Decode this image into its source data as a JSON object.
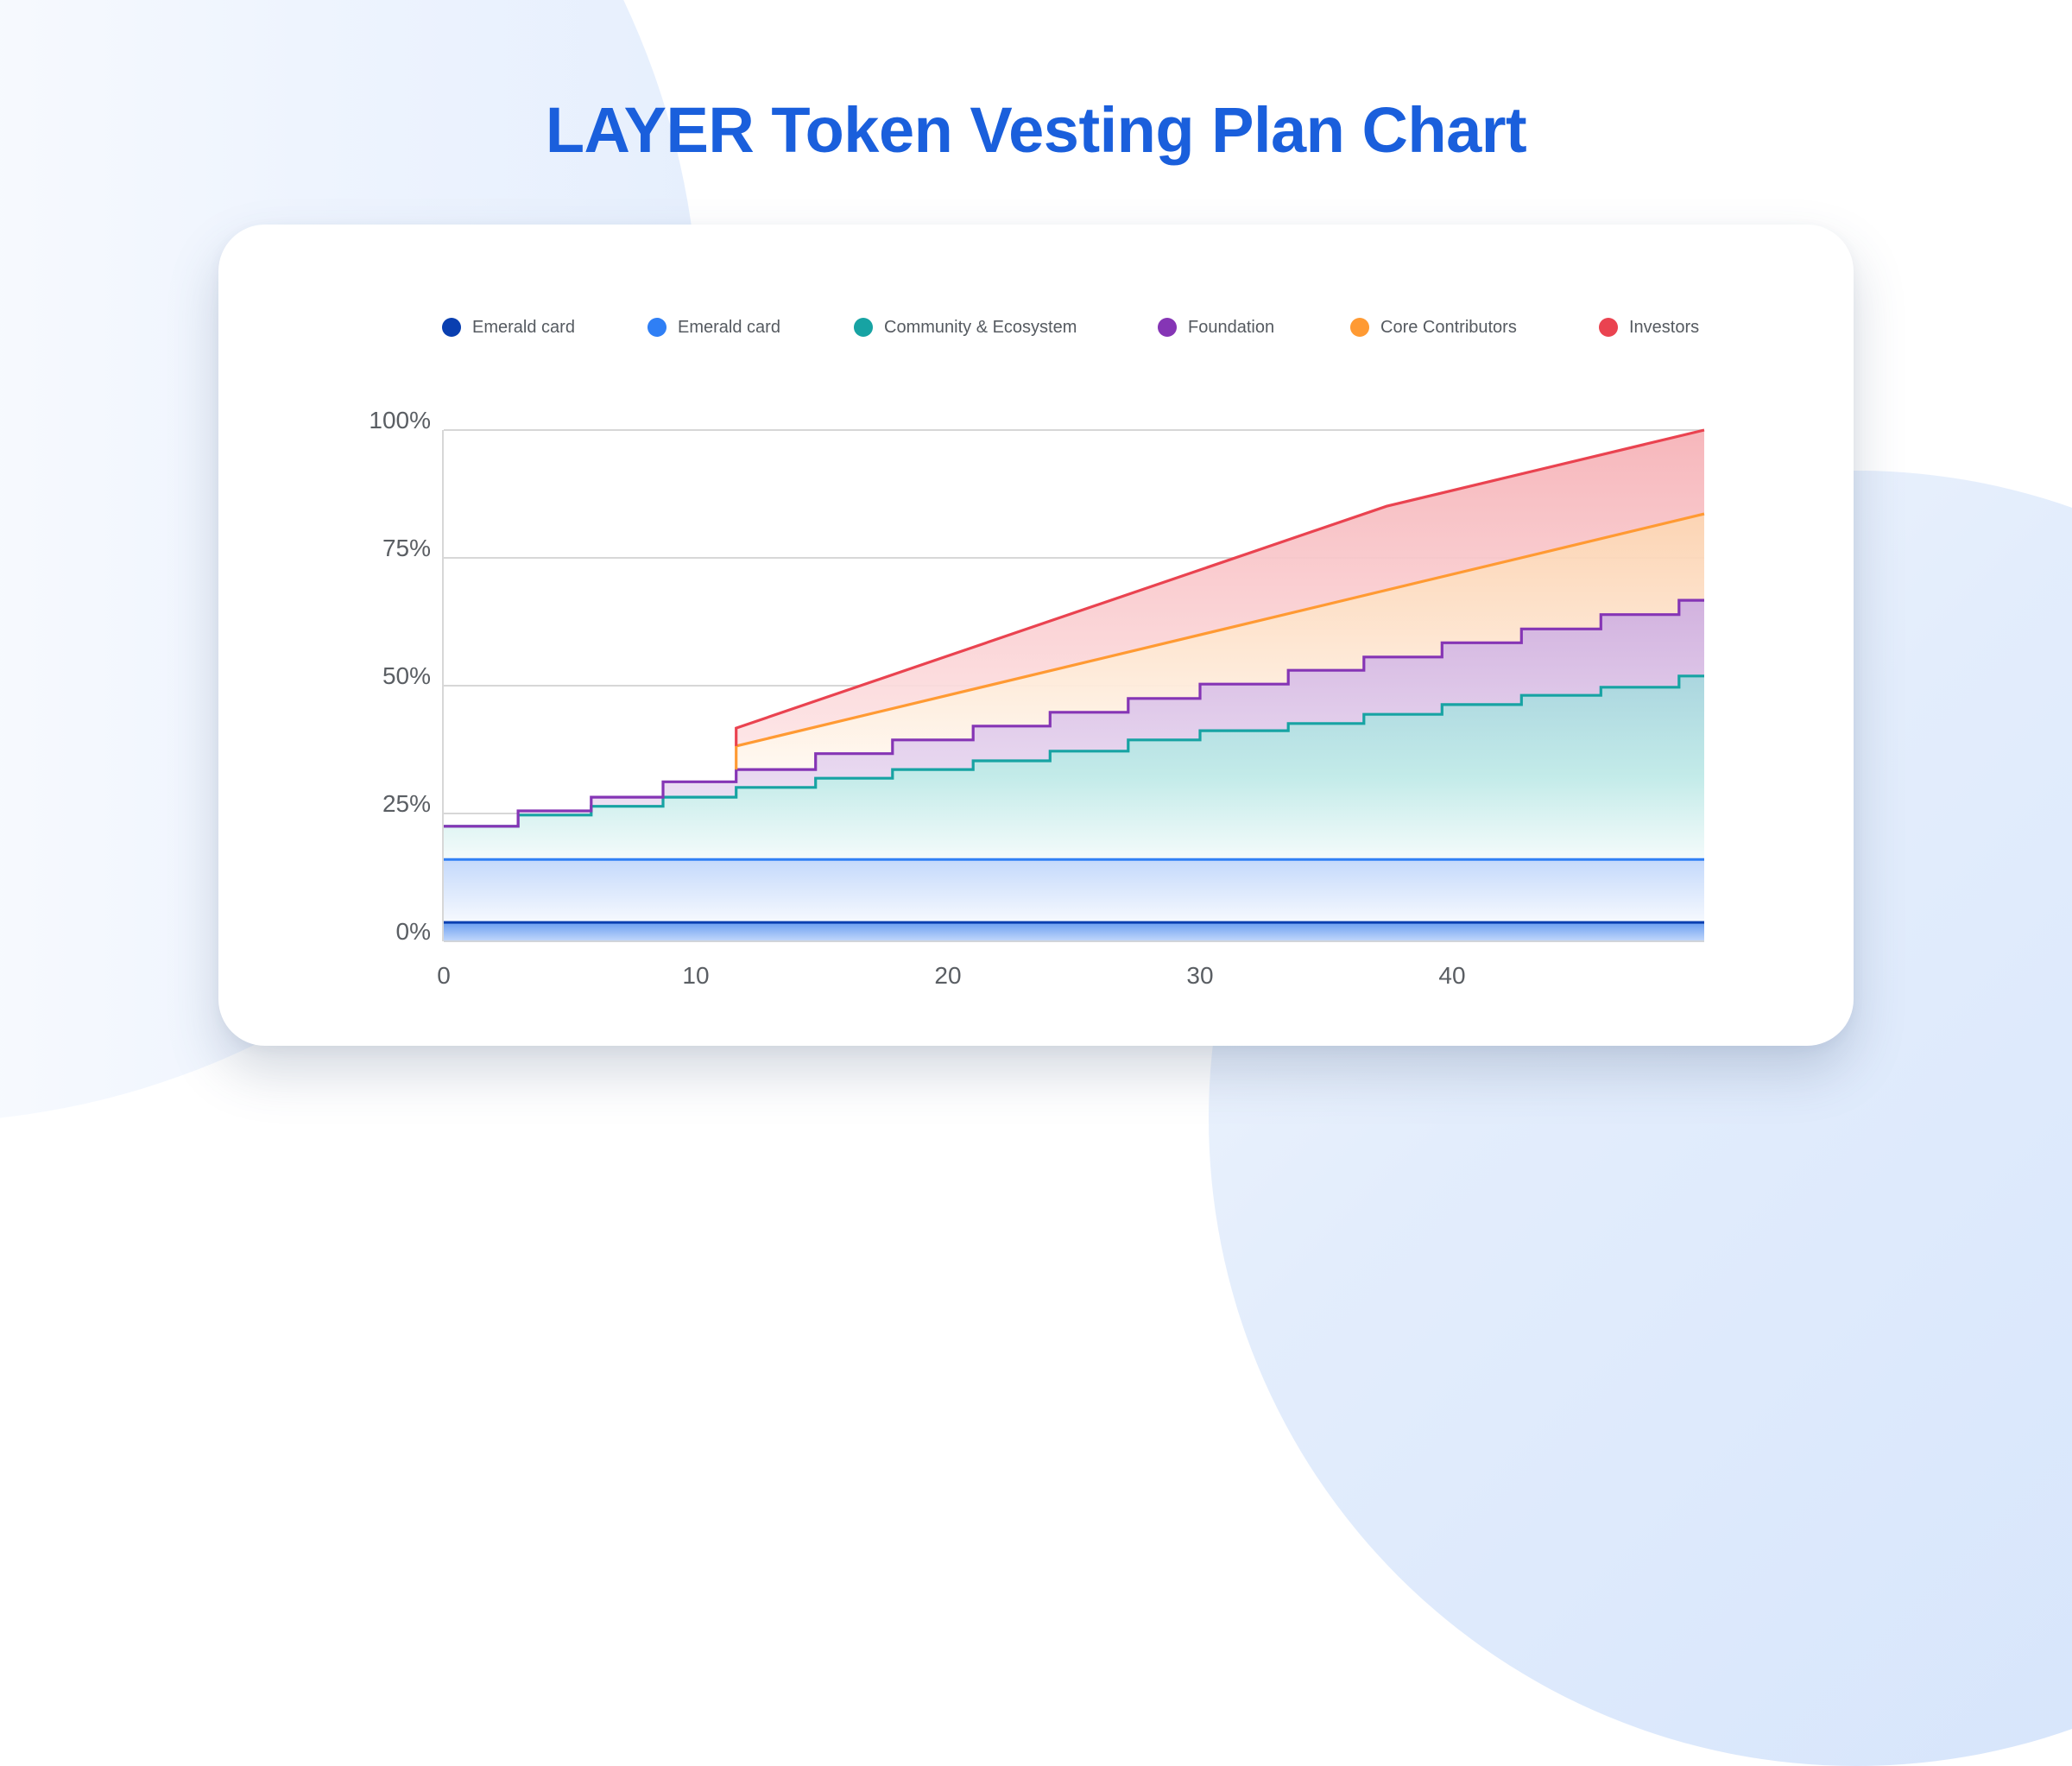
{
  "title": "LAYER Token Vesting Plan Chart",
  "legend": [
    {
      "label": "Emerald card",
      "color": "#0a3fb0"
    },
    {
      "label": "Emerald card",
      "color": "#2f7ff5"
    },
    {
      "label": "Community & Ecosystem",
      "color": "#17a3a3"
    },
    {
      "label": "Foundation",
      "color": "#8535b5"
    },
    {
      "label": "Core Contributors",
      "color": "#ff9a33"
    },
    {
      "label": "Investors",
      "color": "#ea4350"
    }
  ],
  "chart_data": {
    "type": "area",
    "title": "LAYER Token Vesting Plan Chart",
    "xlabel": "",
    "ylabel": "",
    "xlim": [
      0,
      50
    ],
    "ylim": [
      0,
      100
    ],
    "x_ticks": [
      0,
      10,
      20,
      30,
      40
    ],
    "x_tick_labels": [
      "0",
      "10",
      "20",
      "30",
      "40"
    ],
    "y_ticks": [
      0,
      25,
      50,
      75,
      100
    ],
    "y_tick_labels": [
      "0%",
      "25%",
      "50%",
      "75%",
      "100%"
    ],
    "grid": "horizontal",
    "legend_position": "top",
    "stacked_cumulative": true,
    "step_x": [
      2.95,
      5.85,
      8.7,
      11.6,
      14.75,
      17.8,
      21.0,
      24.05,
      27.15,
      30.0,
      33.5,
      36.5,
      39.6,
      42.75,
      45.9,
      49.0
    ],
    "series": [
      {
        "name": "Emerald card",
        "color": "#0a3fb0",
        "kind": "flat",
        "points": [
          [
            0,
            3.7
          ],
          [
            50,
            3.7
          ]
        ]
      },
      {
        "name": "Emerald card",
        "color": "#2f7ff5",
        "kind": "flat",
        "points": [
          [
            0,
            16.0
          ],
          [
            50,
            16.0
          ]
        ]
      },
      {
        "name": "Community & Ecosystem",
        "color": "#17a3a3",
        "kind": "step",
        "levels": [
          22.5,
          24.7,
          26.4,
          28.2,
          30.1,
          31.9,
          33.6,
          35.3,
          37.2,
          39.4,
          41.2,
          42.6,
          44.4,
          46.3,
          48.1,
          49.7,
          51.9
        ]
      },
      {
        "name": "Foundation",
        "color": "#8535b5",
        "kind": "step",
        "levels": [
          22.5,
          25.5,
          28.2,
          31.2,
          33.6,
          36.7,
          39.4,
          42.1,
          44.8,
          47.5,
          50.3,
          53.0,
          55.6,
          58.4,
          61.1,
          63.9,
          66.7
        ]
      },
      {
        "name": "Core Contributors",
        "color": "#ff9a33",
        "kind": "linear",
        "start_x": 11.6,
        "points": [
          [
            11.6,
            38.2
          ],
          [
            50,
            83.6
          ]
        ]
      },
      {
        "name": "Investors",
        "color": "#ea4350",
        "kind": "linear",
        "start_x": 11.6,
        "points": [
          [
            11.6,
            41.7
          ],
          [
            37.4,
            85.1
          ],
          [
            50,
            100.0
          ]
        ]
      }
    ]
  }
}
